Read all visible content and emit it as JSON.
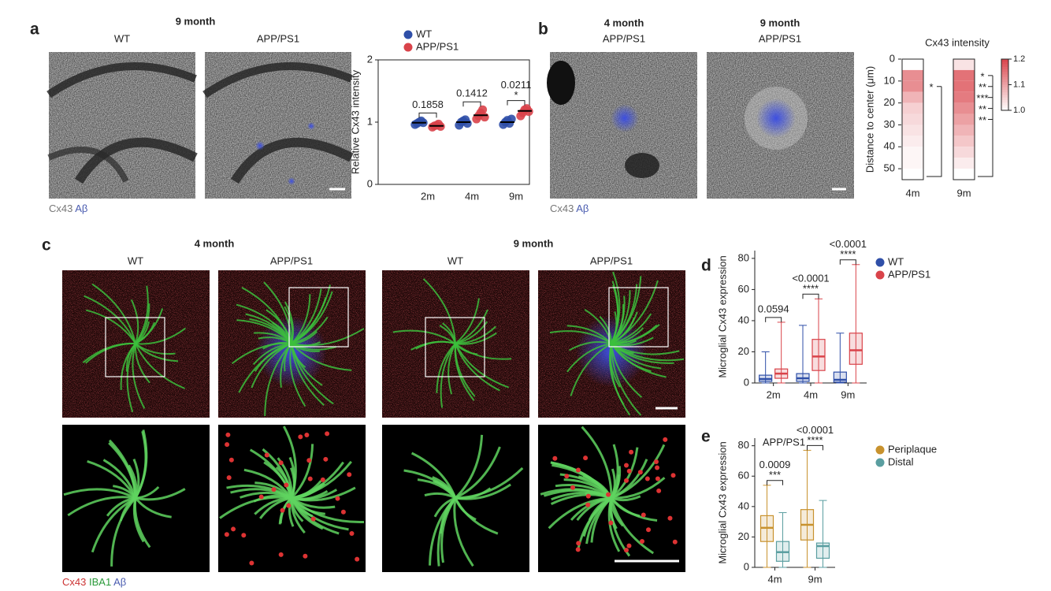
{
  "figure": {
    "panel_labels": [
      "a",
      "b",
      "c",
      "d",
      "e"
    ],
    "a": {
      "title": "9 month",
      "columns": [
        "WT",
        "APP/PS1"
      ],
      "stain": [
        "Cx43",
        "Aβ"
      ]
    },
    "b": {
      "groups": [
        {
          "age": "4 month",
          "genotype": "APP/PS1"
        },
        {
          "age": "9 month",
          "genotype": "APP/PS1"
        }
      ],
      "stain": [
        "Cx43",
        "Aβ"
      ]
    },
    "c": {
      "groups": [
        {
          "age": "4 month",
          "columns": [
            "WT",
            "APP/PS1"
          ]
        },
        {
          "age": "9 month",
          "columns": [
            "WT",
            "APP/PS1"
          ]
        }
      ],
      "stain": [
        "Cx43",
        "IBA1",
        "Aβ"
      ]
    }
  },
  "chart_data": [
    {
      "type": "dot",
      "y_label": "Relative Cx43 intensity",
      "categories": [
        "2m",
        "4m",
        "9m"
      ],
      "series": [
        {
          "name": "WT",
          "color": "#2f4fa8",
          "values": [
            0.99,
            1.0,
            1.0
          ],
          "points": [
            [
              0.96,
              0.98,
              1.0,
              1.02,
              0.99
            ],
            [
              0.95,
              1.0,
              1.02,
              1.04,
              0.98
            ],
            [
              0.96,
              1.0,
              1.03,
              0.98,
              1.05
            ]
          ]
        },
        {
          "name": "APP/PS1",
          "color": "#d9434a",
          "values": [
            0.94,
            1.11,
            1.18
          ],
          "points": [
            [
              0.92,
              0.94,
              0.95,
              0.97,
              0.93
            ],
            [
              1.05,
              1.1,
              1.15,
              1.2,
              1.08
            ],
            [
              1.1,
              1.15,
              1.2,
              1.22,
              1.17
            ]
          ]
        }
      ],
      "p_values": [
        "0.1858",
        "0.1412",
        "0.0211"
      ],
      "stars": [
        null,
        null,
        "*"
      ],
      "ylim": [
        0,
        2
      ],
      "yticks": [
        0,
        1,
        2
      ],
      "legend": "top"
    },
    {
      "type": "heatmap",
      "title": "Cx43 intensity",
      "y_label": "Distance to center (μm)",
      "categories": [
        "4m",
        "9m"
      ],
      "bins": [
        0,
        5,
        10,
        15,
        20,
        25,
        30,
        35,
        40,
        45,
        50,
        55
      ],
      "values": [
        [
          1.0,
          1.12,
          1.12,
          1.08,
          1.05,
          1.04,
          1.03,
          1.02,
          1.01,
          1.01,
          1.0
        ],
        [
          1.03,
          1.15,
          1.15,
          1.14,
          1.12,
          1.1,
          1.08,
          1.06,
          1.04,
          1.02,
          1.0
        ]
      ],
      "stars": [
        [
          null,
          null,
          "*",
          null,
          null,
          null,
          null,
          null,
          null,
          null,
          null
        ],
        [
          null,
          "*",
          "**",
          "***",
          "**",
          "**",
          null,
          null,
          null,
          null,
          null
        ]
      ],
      "ylim": [
        0,
        55
      ],
      "yticks": [
        0,
        10,
        20,
        30,
        40,
        50
      ],
      "colors": [
        "#ffffff",
        "#d9434a"
      ],
      "colorbar": {
        "lim": [
          1,
          1.2
        ],
        "ticks": [
          {
            "value": 1,
            "label": "1.0"
          },
          1.1,
          1.2
        ]
      }
    },
    {
      "type": "box",
      "y_label": "Microglial Cx43 expression",
      "categories": [
        "2m",
        "4m",
        "9m"
      ],
      "series": [
        {
          "name": "WT",
          "color": "#2f4fa8",
          "boxes": [
            {
              "min": 0,
              "q1": 1,
              "median": 2.5,
              "q3": 5,
              "max": 20
            },
            {
              "min": 0,
              "q1": 1,
              "median": 3,
              "q3": 6,
              "max": 37
            },
            {
              "min": 0,
              "q1": 0.5,
              "median": 2,
              "q3": 7,
              "max": 32
            }
          ]
        },
        {
          "name": "APP/PS1",
          "color": "#d9434a",
          "boxes": [
            {
              "min": 0,
              "q1": 3,
              "median": 6,
              "q3": 9,
              "max": 39
            },
            {
              "min": 0,
              "q1": 8,
              "median": 17,
              "q3": 28,
              "max": 54
            },
            {
              "min": 0,
              "q1": 12,
              "median": 21,
              "q3": 32,
              "max": 76
            }
          ]
        }
      ],
      "p_values": [
        "0.0594",
        "<0.0001",
        "<0.0001"
      ],
      "stars": [
        null,
        "****",
        "****"
      ],
      "ylim": [
        0,
        85
      ],
      "yticks": [
        0,
        20,
        40,
        60,
        80
      ],
      "legend": "right"
    },
    {
      "type": "box",
      "title": "APP/PS1",
      "y_label": "Microglial Cx43 expression",
      "categories": [
        "4m",
        "9m"
      ],
      "series": [
        {
          "name": "Periplaque",
          "color": "#c8922e",
          "boxes": [
            {
              "min": 0,
              "q1": 17,
              "median": 26,
              "q3": 34,
              "max": 54
            },
            {
              "min": 0,
              "q1": 18,
              "median": 28,
              "q3": 38,
              "max": 77
            }
          ]
        },
        {
          "name": "Distal",
          "color": "#5a9ea0",
          "boxes": [
            {
              "min": 0,
              "q1": 4,
              "median": 10,
              "q3": 17,
              "max": 36
            },
            {
              "min": 0,
              "q1": 6,
              "median": 14,
              "q3": 16,
              "max": 44
            }
          ]
        }
      ],
      "p_values": [
        "0.0009",
        "<0.0001"
      ],
      "stars": [
        "***",
        "****"
      ],
      "ylim": [
        0,
        85
      ],
      "yticks": [
        0,
        20,
        40,
        60,
        80
      ],
      "legend": "right"
    }
  ]
}
